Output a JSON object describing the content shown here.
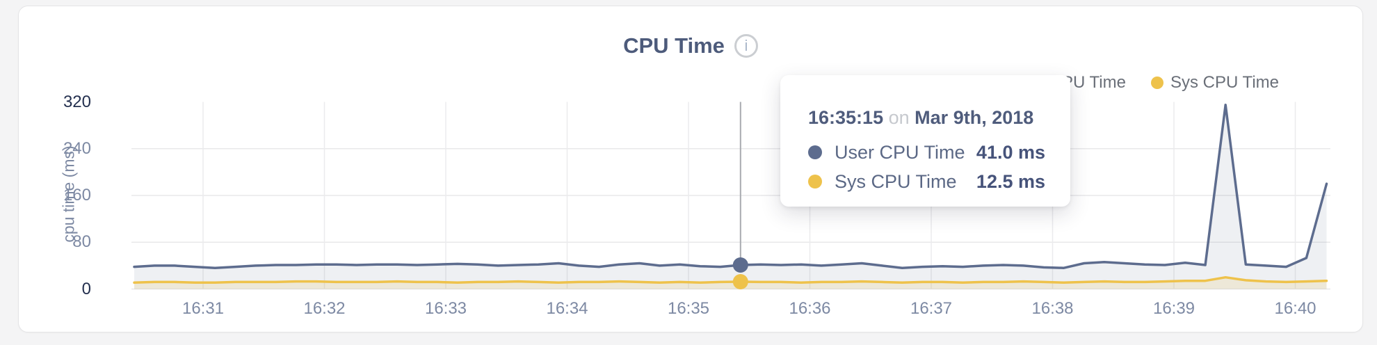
{
  "header": {
    "title": "CPU Time",
    "info_glyph": "i"
  },
  "legend": {
    "items": [
      {
        "label": "User CPU Time",
        "dot_color": "#ececed"
      },
      {
        "label": "Sys CPU Time",
        "dot_color": "#eec24b"
      }
    ]
  },
  "tooltip": {
    "time": "16:35:15",
    "connector": "on",
    "date": "Mar 9th, 2018",
    "rows": [
      {
        "label": "User CPU Time",
        "value": "41.0 ms",
        "dot_color": "#5d6c8e"
      },
      {
        "label": "Sys CPU Time",
        "value": "12.5 ms",
        "dot_color": "#eec24b"
      }
    ]
  },
  "chart_data": {
    "type": "area",
    "title": "CPU Time",
    "ylabel": "cpu time (ms)",
    "ylim": [
      0,
      320
    ],
    "yticks": [
      320,
      240,
      160,
      80,
      0
    ],
    "ytick_emphasis": [
      320,
      0
    ],
    "xticks": [
      "16:31",
      "16:32",
      "16:33",
      "16:34",
      "16:35",
      "16:36",
      "16:37",
      "16:38",
      "16:39",
      "16:40"
    ],
    "grid": true,
    "legend_position": "top-right",
    "series": [
      {
        "name": "User CPU Time",
        "color": "#5d6c8e",
        "fill": "rgba(93,108,142,0.10)",
        "values": [
          38,
          40,
          40,
          38,
          36,
          38,
          40,
          41,
          41,
          42,
          42,
          41,
          42,
          42,
          41,
          42,
          43,
          42,
          40,
          41,
          42,
          44,
          40,
          38,
          42,
          44,
          40,
          42,
          39,
          38,
          41,
          42,
          41,
          42,
          40,
          42,
          44,
          40,
          36,
          38,
          39,
          38,
          40,
          41,
          40,
          37,
          36,
          44,
          46,
          44,
          42,
          41,
          45,
          41,
          315,
          42,
          40,
          38,
          53,
          180
        ]
      },
      {
        "name": "Sys CPU Time",
        "color": "#eec24b",
        "fill": "rgba(238,194,75,0.16)",
        "values": [
          11,
          12,
          12,
          11,
          11,
          12,
          12,
          12,
          13,
          13,
          12,
          12,
          12,
          13,
          12,
          12,
          11,
          12,
          12,
          13,
          12,
          11,
          12,
          12,
          13,
          12,
          11,
          12,
          11,
          12,
          12.5,
          12,
          12,
          11,
          12,
          12,
          13,
          12,
          11,
          12,
          12,
          11,
          12,
          12,
          13,
          12,
          11,
          12,
          13,
          12,
          12,
          13,
          14,
          14,
          20,
          15,
          13,
          12,
          13,
          14
        ]
      }
    ],
    "hover": {
      "index": 30,
      "time": "16:35:15",
      "user_value_ms": 41.0,
      "sys_value_ms": 12.5
    },
    "colors": {
      "h_grid": "#e8e8ea",
      "v_grid": "#ebebed",
      "crosshair": "#a8abb0"
    }
  }
}
